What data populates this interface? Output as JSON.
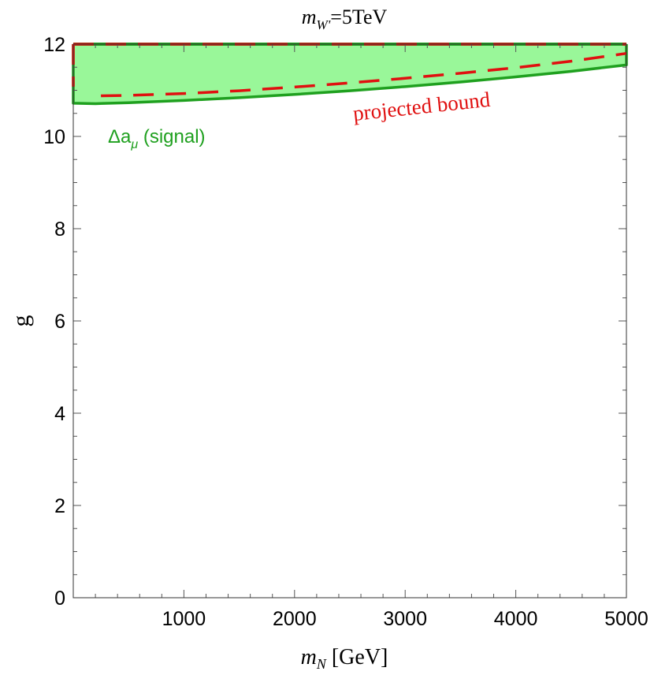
{
  "chart_data": {
    "type": "area",
    "title": {
      "main": "m",
      "sub": "W'",
      "rest": "=5TeV"
    },
    "xlabel": {
      "main": "m",
      "sub": "N",
      "rest": " [GeV]"
    },
    "ylabel": "g",
    "xlim": [
      0,
      5000
    ],
    "ylim": [
      0,
      12
    ],
    "xticks": [
      1000,
      2000,
      3000,
      4000,
      5000
    ],
    "yticks": [
      0,
      2,
      4,
      6,
      8,
      10,
      12
    ],
    "grid": false,
    "series": [
      {
        "name": "Δa_μ (signal)",
        "label": {
          "main": "Δa",
          "sub": "μ",
          "rest": " (signal)"
        },
        "style": "solid-fill",
        "color": "#1fa01f",
        "fill": "#99f799",
        "x": [
          0,
          200,
          500,
          1000,
          1500,
          2000,
          2500,
          3000,
          3500,
          4000,
          4500,
          5000
        ],
        "y_lower": [
          10.72,
          10.71,
          10.73,
          10.78,
          10.84,
          10.91,
          10.99,
          11.08,
          11.18,
          11.29,
          11.41,
          11.55
        ],
        "y_upper": 12
      },
      {
        "name": "projected bound",
        "label": {
          "main": "projected bound"
        },
        "style": "dashed",
        "color": "#e01010",
        "x": [
          250,
          500,
          1000,
          1500,
          2000,
          2500,
          3000,
          3500,
          4000,
          4500,
          5000
        ],
        "y_lower": [
          10.88,
          10.89,
          10.93,
          10.99,
          11.07,
          11.16,
          11.26,
          11.37,
          11.49,
          11.63,
          11.8
        ],
        "y_upper": 12
      }
    ]
  }
}
